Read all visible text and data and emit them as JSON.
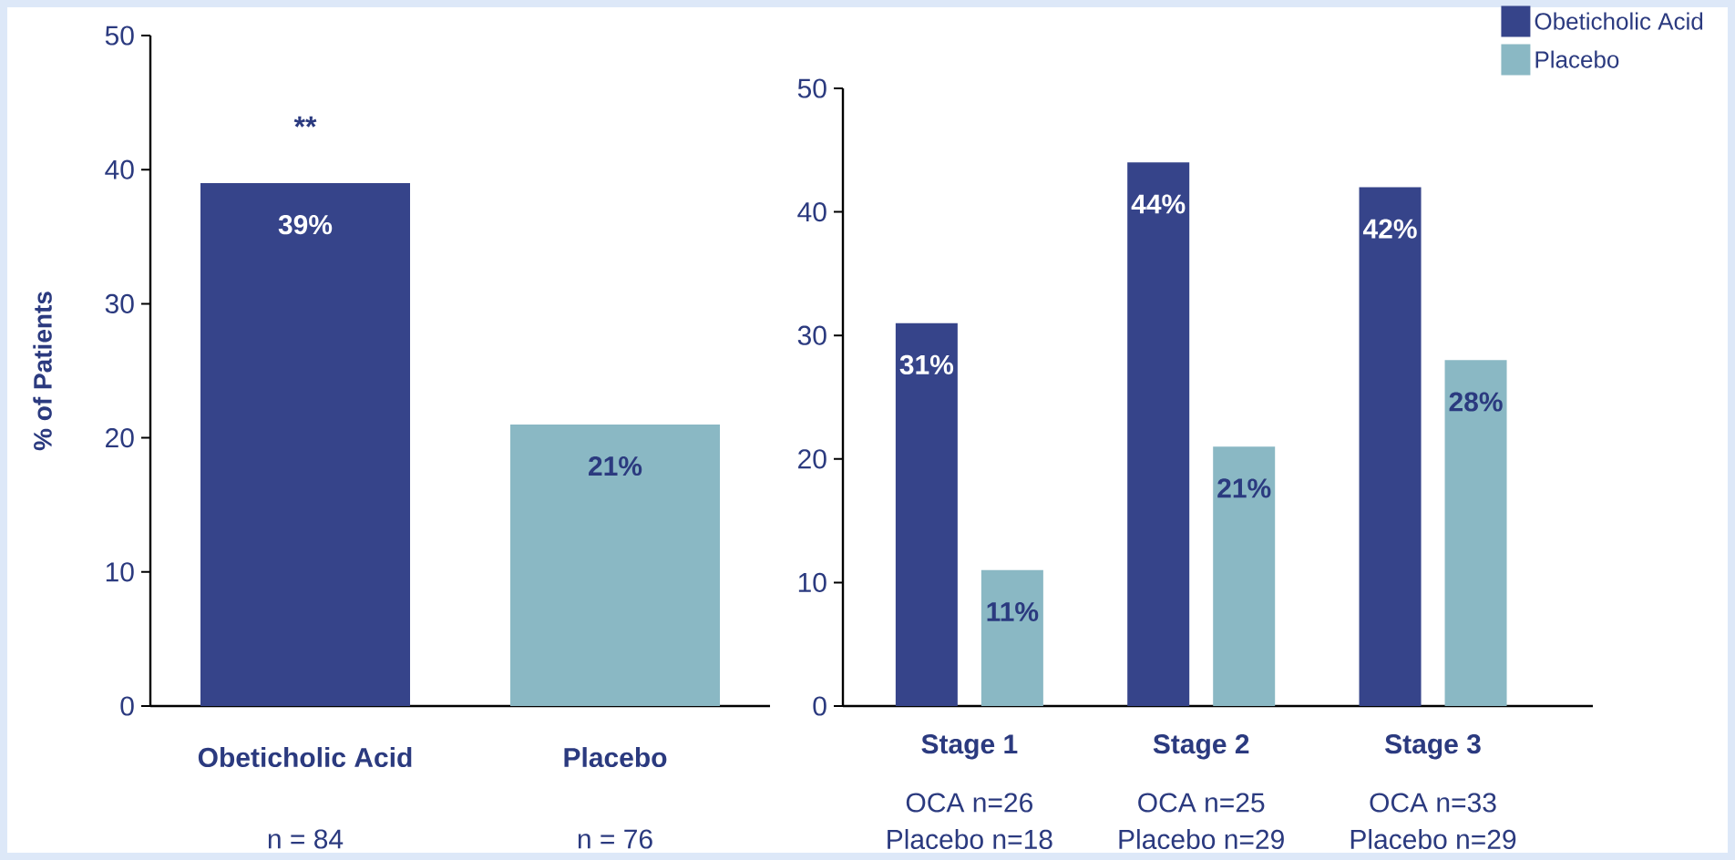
{
  "chart_data": [
    {
      "type": "bar",
      "ylabel": "% of Patients",
      "categories": [
        "Obeticholic Acid",
        "Placebo"
      ],
      "values": [
        39,
        21
      ],
      "colors": [
        "#36448a",
        "#8ab8c4"
      ],
      "value_labels": [
        "39%",
        "21%"
      ],
      "ylim": [
        0,
        50
      ],
      "yticks": [
        0,
        10,
        20,
        30,
        40,
        50
      ],
      "annotations": [
        "**",
        "n = 84",
        "n = 76"
      ]
    },
    {
      "type": "bar",
      "categories": [
        "Stage 1",
        "Stage 2",
        "Stage 3"
      ],
      "ylim": [
        0,
        50
      ],
      "yticks": [
        0,
        10,
        20,
        30,
        40,
        50
      ],
      "legend": "top right",
      "series": [
        {
          "name": "Obeticholic Acid",
          "color": "#36448a",
          "values": [
            31,
            44,
            42
          ],
          "value_labels": [
            "31%",
            "44%",
            "42%"
          ]
        },
        {
          "name": "Placebo",
          "color": "#8ab8c4",
          "values": [
            11,
            21,
            28
          ],
          "value_labels": [
            "11%",
            "21%",
            "28%"
          ]
        }
      ],
      "annotations": [
        "OCA n=26",
        "Placebo n=18",
        "OCA n=25",
        "Placebo n=29",
        "OCA n=33",
        "Placebo n=29"
      ]
    }
  ]
}
